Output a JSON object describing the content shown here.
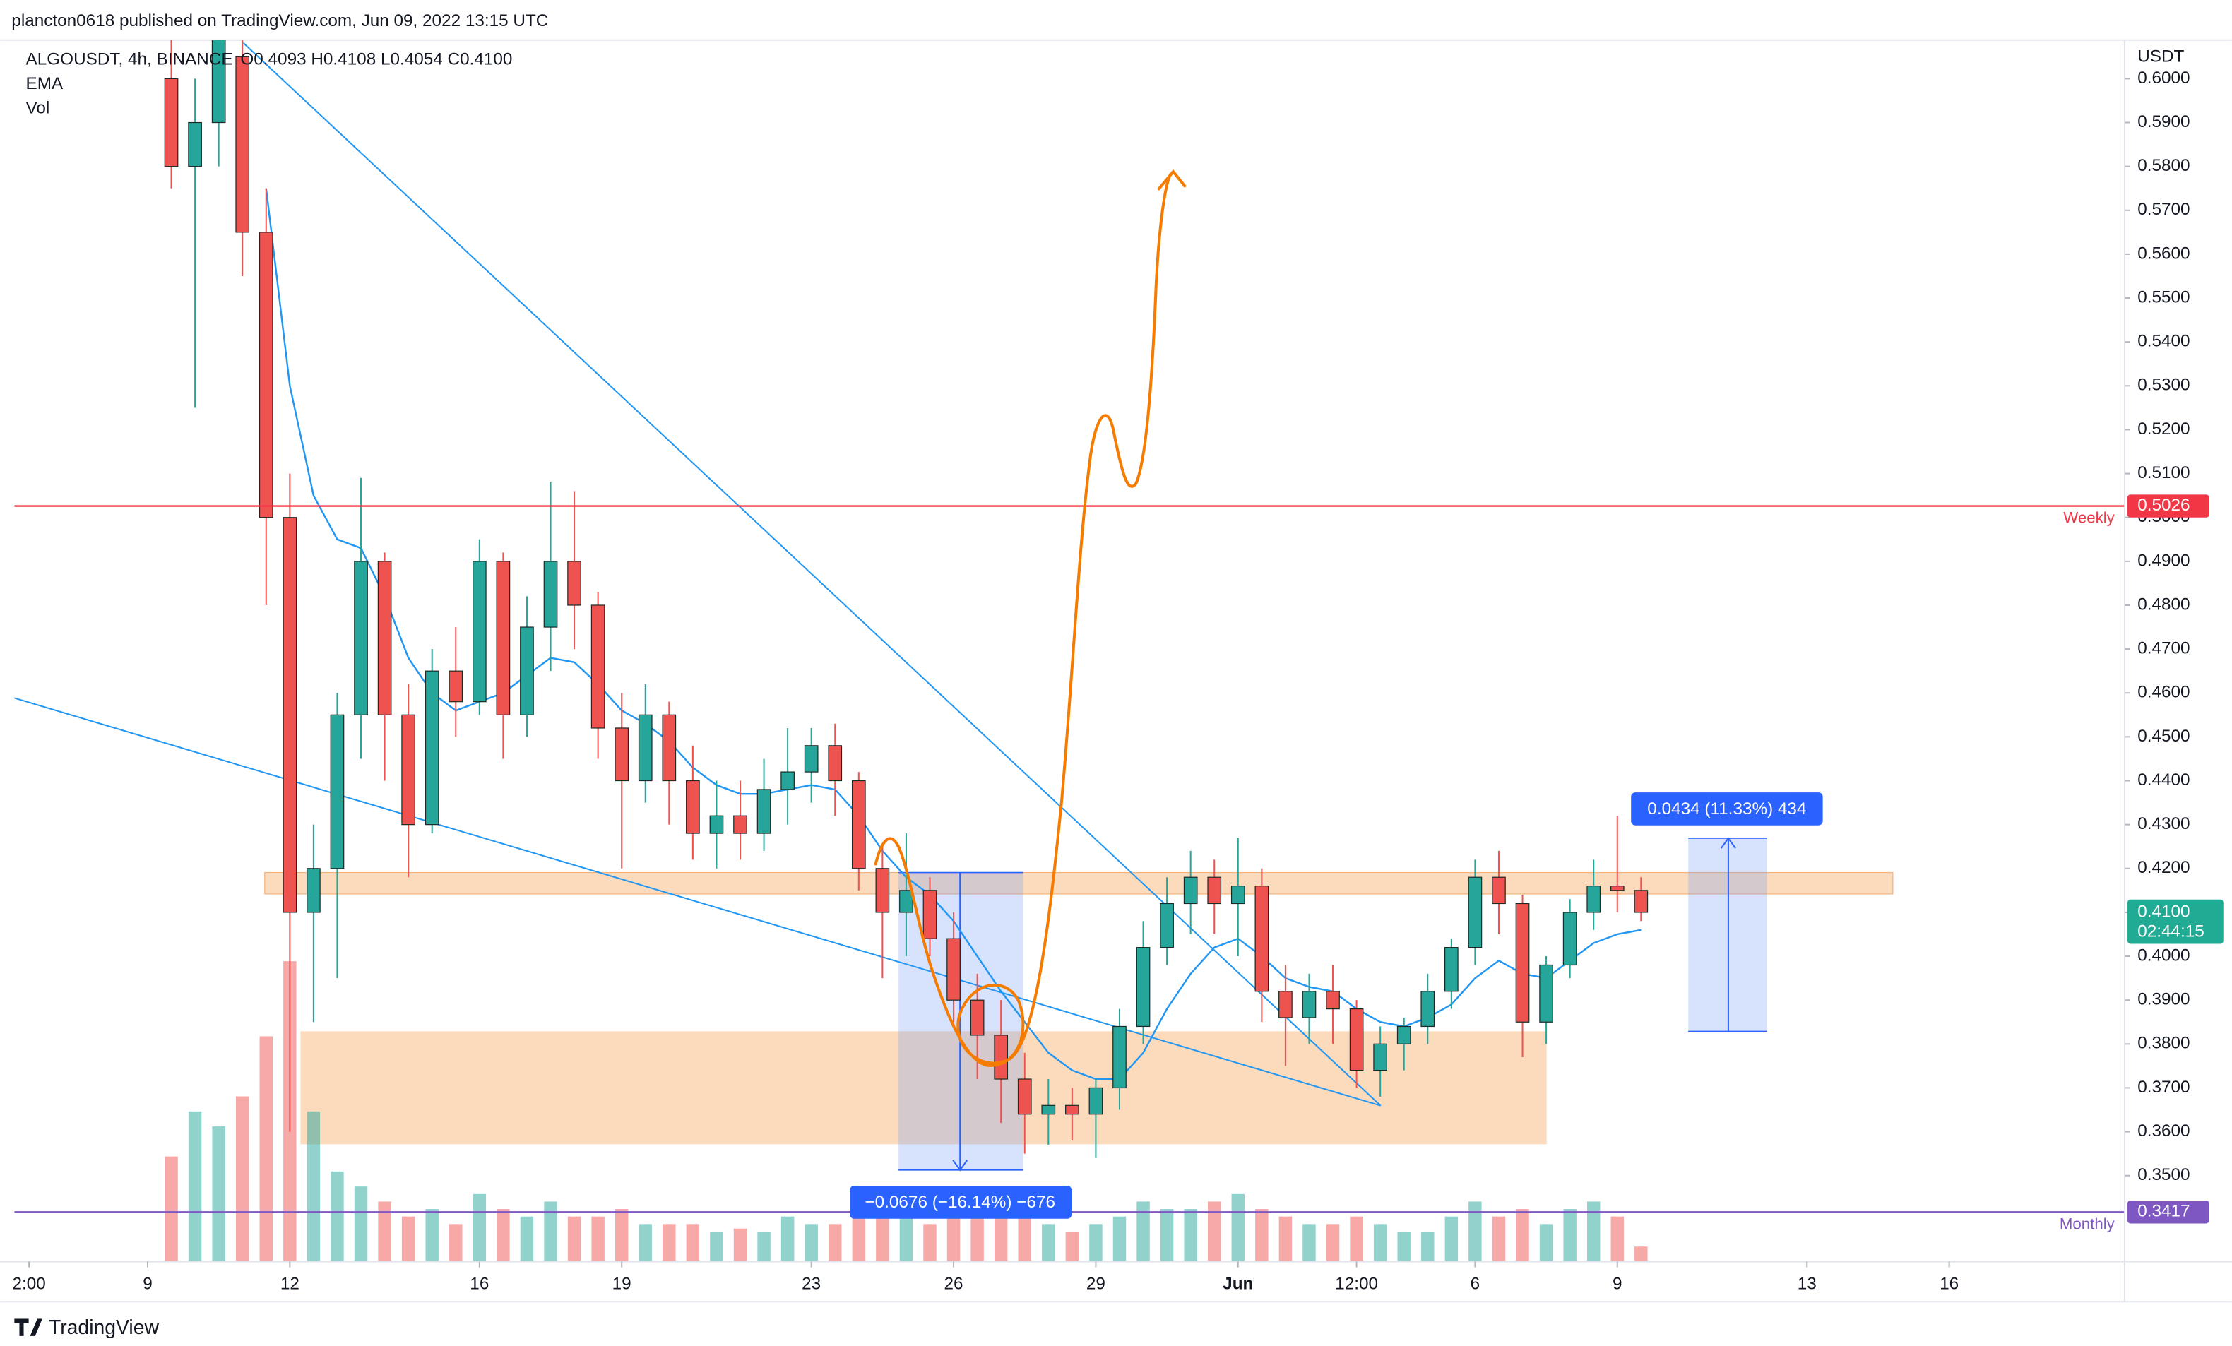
{
  "header": {
    "publisher": "plancton0618 published on TradingView.com, Jun 09, 2022 13:15 UTC"
  },
  "footer": {
    "brand": "TradingView"
  },
  "chart_data": {
    "type": "candlestick",
    "symbol": "ALGOUSDT, 4h, BINANCE",
    "ohlc_text": "O0.4093  H0.4108  L0.4054  C0.4100",
    "indicators": [
      "EMA",
      "Vol"
    ],
    "y_unit": "USDT",
    "up_color": "#26a69a",
    "down_color": "#ef5350",
    "ema_color": "#2196f3",
    "grid": false,
    "x": [
      9.5,
      10,
      10.5,
      11,
      11.5,
      12,
      12.5,
      13,
      13.5,
      14,
      14.5,
      15,
      15.5,
      16,
      16.5,
      17,
      17.5,
      18,
      18.5,
      19,
      19.5,
      20,
      20.5,
      21,
      21.5,
      22,
      22.5,
      23,
      23.5,
      24,
      24.5,
      25,
      25.5,
      26,
      26.5,
      27,
      27.5,
      28,
      28.5,
      29,
      29.5,
      30,
      30.5,
      31,
      31.5,
      32,
      32.5,
      33,
      33.5,
      34,
      34.5,
      35,
      35.5,
      36,
      36.5,
      37,
      37.5,
      38,
      38.5,
      39,
      39.5,
      40,
      40.5
    ],
    "open": [
      0.6,
      0.58,
      0.59,
      0.605,
      0.565,
      0.5,
      0.41,
      0.42,
      0.455,
      0.49,
      0.455,
      0.43,
      0.465,
      0.458,
      0.49,
      0.455,
      0.475,
      0.49,
      0.48,
      0.452,
      0.44,
      0.455,
      0.44,
      0.428,
      0.432,
      0.428,
      0.438,
      0.442,
      0.448,
      0.44,
      0.42,
      0.41,
      0.415,
      0.404,
      0.39,
      0.382,
      0.372,
      0.364,
      0.366,
      0.364,
      0.37,
      0.384,
      0.402,
      0.412,
      0.418,
      0.412,
      0.416,
      0.392,
      0.386,
      0.392,
      0.388,
      0.374,
      0.38,
      0.384,
      0.392,
      0.402,
      0.418,
      0.412,
      0.385,
      0.398,
      0.41,
      0.416,
      0.415
    ],
    "high": [
      0.615,
      0.6,
      0.625,
      0.61,
      0.575,
      0.51,
      0.43,
      0.46,
      0.509,
      0.492,
      0.462,
      0.47,
      0.475,
      0.495,
      0.492,
      0.482,
      0.508,
      0.506,
      0.483,
      0.46,
      0.462,
      0.458,
      0.448,
      0.44,
      0.44,
      0.445,
      0.452,
      0.452,
      0.453,
      0.442,
      0.425,
      0.428,
      0.418,
      0.41,
      0.396,
      0.39,
      0.378,
      0.372,
      0.37,
      0.372,
      0.388,
      0.408,
      0.418,
      0.424,
      0.422,
      0.427,
      0.42,
      0.398,
      0.396,
      0.398,
      0.39,
      0.384,
      0.386,
      0.396,
      0.404,
      0.422,
      0.424,
      0.414,
      0.4,
      0.413,
      0.422,
      0.432,
      0.418
    ],
    "low": [
      0.575,
      0.525,
      0.58,
      0.555,
      0.48,
      0.36,
      0.385,
      0.395,
      0.445,
      0.44,
      0.418,
      0.428,
      0.45,
      0.455,
      0.445,
      0.45,
      0.465,
      0.47,
      0.445,
      0.42,
      0.435,
      0.43,
      0.422,
      0.42,
      0.422,
      0.424,
      0.43,
      0.435,
      0.432,
      0.415,
      0.395,
      0.4,
      0.4,
      0.385,
      0.372,
      0.362,
      0.355,
      0.357,
      0.358,
      0.354,
      0.365,
      0.38,
      0.398,
      0.405,
      0.405,
      0.4,
      0.385,
      0.375,
      0.38,
      0.38,
      0.37,
      0.368,
      0.374,
      0.38,
      0.388,
      0.398,
      0.405,
      0.377,
      0.38,
      0.395,
      0.406,
      0.41,
      0.408
    ],
    "close": [
      0.58,
      0.59,
      0.61,
      0.565,
      0.5,
      0.41,
      0.42,
      0.455,
      0.49,
      0.455,
      0.43,
      0.465,
      0.458,
      0.49,
      0.455,
      0.475,
      0.49,
      0.48,
      0.452,
      0.44,
      0.455,
      0.44,
      0.428,
      0.432,
      0.428,
      0.438,
      0.442,
      0.448,
      0.44,
      0.42,
      0.41,
      0.415,
      0.404,
      0.39,
      0.382,
      0.372,
      0.364,
      0.366,
      0.364,
      0.37,
      0.384,
      0.402,
      0.412,
      0.418,
      0.412,
      0.416,
      0.392,
      0.386,
      0.392,
      0.388,
      0.374,
      0.38,
      0.384,
      0.392,
      0.402,
      0.418,
      0.412,
      0.385,
      0.398,
      0.41,
      0.416,
      0.415,
      0.41
    ],
    "ema": [
      null,
      null,
      null,
      null,
      0.575,
      0.53,
      0.505,
      0.495,
      0.493,
      0.482,
      0.468,
      0.46,
      0.456,
      0.458,
      0.46,
      0.464,
      0.468,
      0.467,
      0.462,
      0.456,
      0.453,
      0.449,
      0.443,
      0.439,
      0.437,
      0.437,
      0.438,
      0.439,
      0.438,
      0.432,
      0.424,
      0.418,
      0.414,
      0.408,
      0.4,
      0.392,
      0.385,
      0.378,
      0.374,
      0.372,
      0.372,
      0.378,
      0.388,
      0.396,
      0.402,
      0.404,
      0.4,
      0.395,
      0.393,
      0.392,
      0.388,
      0.385,
      0.384,
      0.386,
      0.389,
      0.395,
      0.399,
      0.396,
      0.395,
      0.399,
      0.403,
      0.405,
      0.406
    ],
    "volume": [
      70,
      100,
      90,
      110,
      150,
      200,
      100,
      60,
      50,
      40,
      30,
      35,
      25,
      45,
      35,
      30,
      40,
      30,
      30,
      35,
      25,
      25,
      25,
      20,
      22,
      20,
      30,
      25,
      25,
      30,
      30,
      30,
      25,
      40,
      45,
      50,
      35,
      25,
      20,
      25,
      30,
      40,
      35,
      35,
      40,
      45,
      35,
      30,
      25,
      25,
      30,
      25,
      20,
      20,
      30,
      40,
      30,
      35,
      25,
      35,
      40,
      30,
      10
    ],
    "xlim": [
      6.19,
      50.7
    ],
    "ylim": [
      0.3304,
      0.6088
    ],
    "xticks": [
      {
        "value": 6.5,
        "label": "2:00"
      },
      9,
      12,
      16,
      19,
      23,
      26,
      29,
      {
        "value": 32,
        "label": "Jun"
      },
      {
        "value": 34.5,
        "label": "12:00"
      },
      {
        "value": 37,
        "label": "6"
      },
      {
        "value": 40,
        "label": "9"
      },
      {
        "value": 44,
        "label": "13"
      },
      {
        "value": 47,
        "label": "16"
      }
    ],
    "yticks": [
      {
        "value": 0.35,
        "label": "0.3500"
      },
      {
        "value": 0.36,
        "label": "0.3600"
      },
      {
        "value": 0.37,
        "label": "0.3700"
      },
      {
        "value": 0.38,
        "label": "0.3800"
      },
      {
        "value": 0.39,
        "label": "0.3900"
      },
      {
        "value": 0.4,
        "label": "0.4000"
      },
      {
        "value": 0.41,
        "label": "0.4100"
      },
      {
        "value": 0.42,
        "label": "0.4200"
      },
      {
        "value": 0.43,
        "label": "0.4300"
      },
      {
        "value": 0.44,
        "label": "0.4400"
      },
      {
        "value": 0.45,
        "label": "0.4500"
      },
      {
        "value": 0.46,
        "label": "0.4600"
      },
      {
        "value": 0.47,
        "label": "0.4700"
      },
      {
        "value": 0.48,
        "label": "0.4800"
      },
      {
        "value": 0.49,
        "label": "0.4900"
      },
      {
        "value": 0.5,
        "label": "0.5000"
      },
      {
        "value": 0.51,
        "label": "0.5100"
      },
      {
        "value": 0.52,
        "label": "0.5200"
      },
      {
        "value": 0.53,
        "label": "0.5300"
      },
      {
        "value": 0.54,
        "label": "0.5400"
      },
      {
        "value": 0.55,
        "label": "0.5500"
      },
      {
        "value": 0.56,
        "label": "0.5600"
      },
      {
        "value": 0.57,
        "label": "0.5700"
      },
      {
        "value": 0.58,
        "label": "0.5800"
      },
      {
        "value": 0.59,
        "label": "0.5900"
      },
      {
        "value": 0.6,
        "label": "0.6000"
      }
    ],
    "levels": [
      {
        "name": "Weekly",
        "value": 0.5026,
        "color": "#f23645"
      },
      {
        "name": "Monthly",
        "value": 0.3417,
        "color": "#7e57c2"
      }
    ],
    "last": {
      "value": 0.41,
      "label": "0.4100",
      "countdown": "02:44:15",
      "color": "#22ab94"
    },
    "measures": [
      "−0.0676 (−16.14%) −676",
      "0.0434 (11.33%) 434"
    ]
  }
}
